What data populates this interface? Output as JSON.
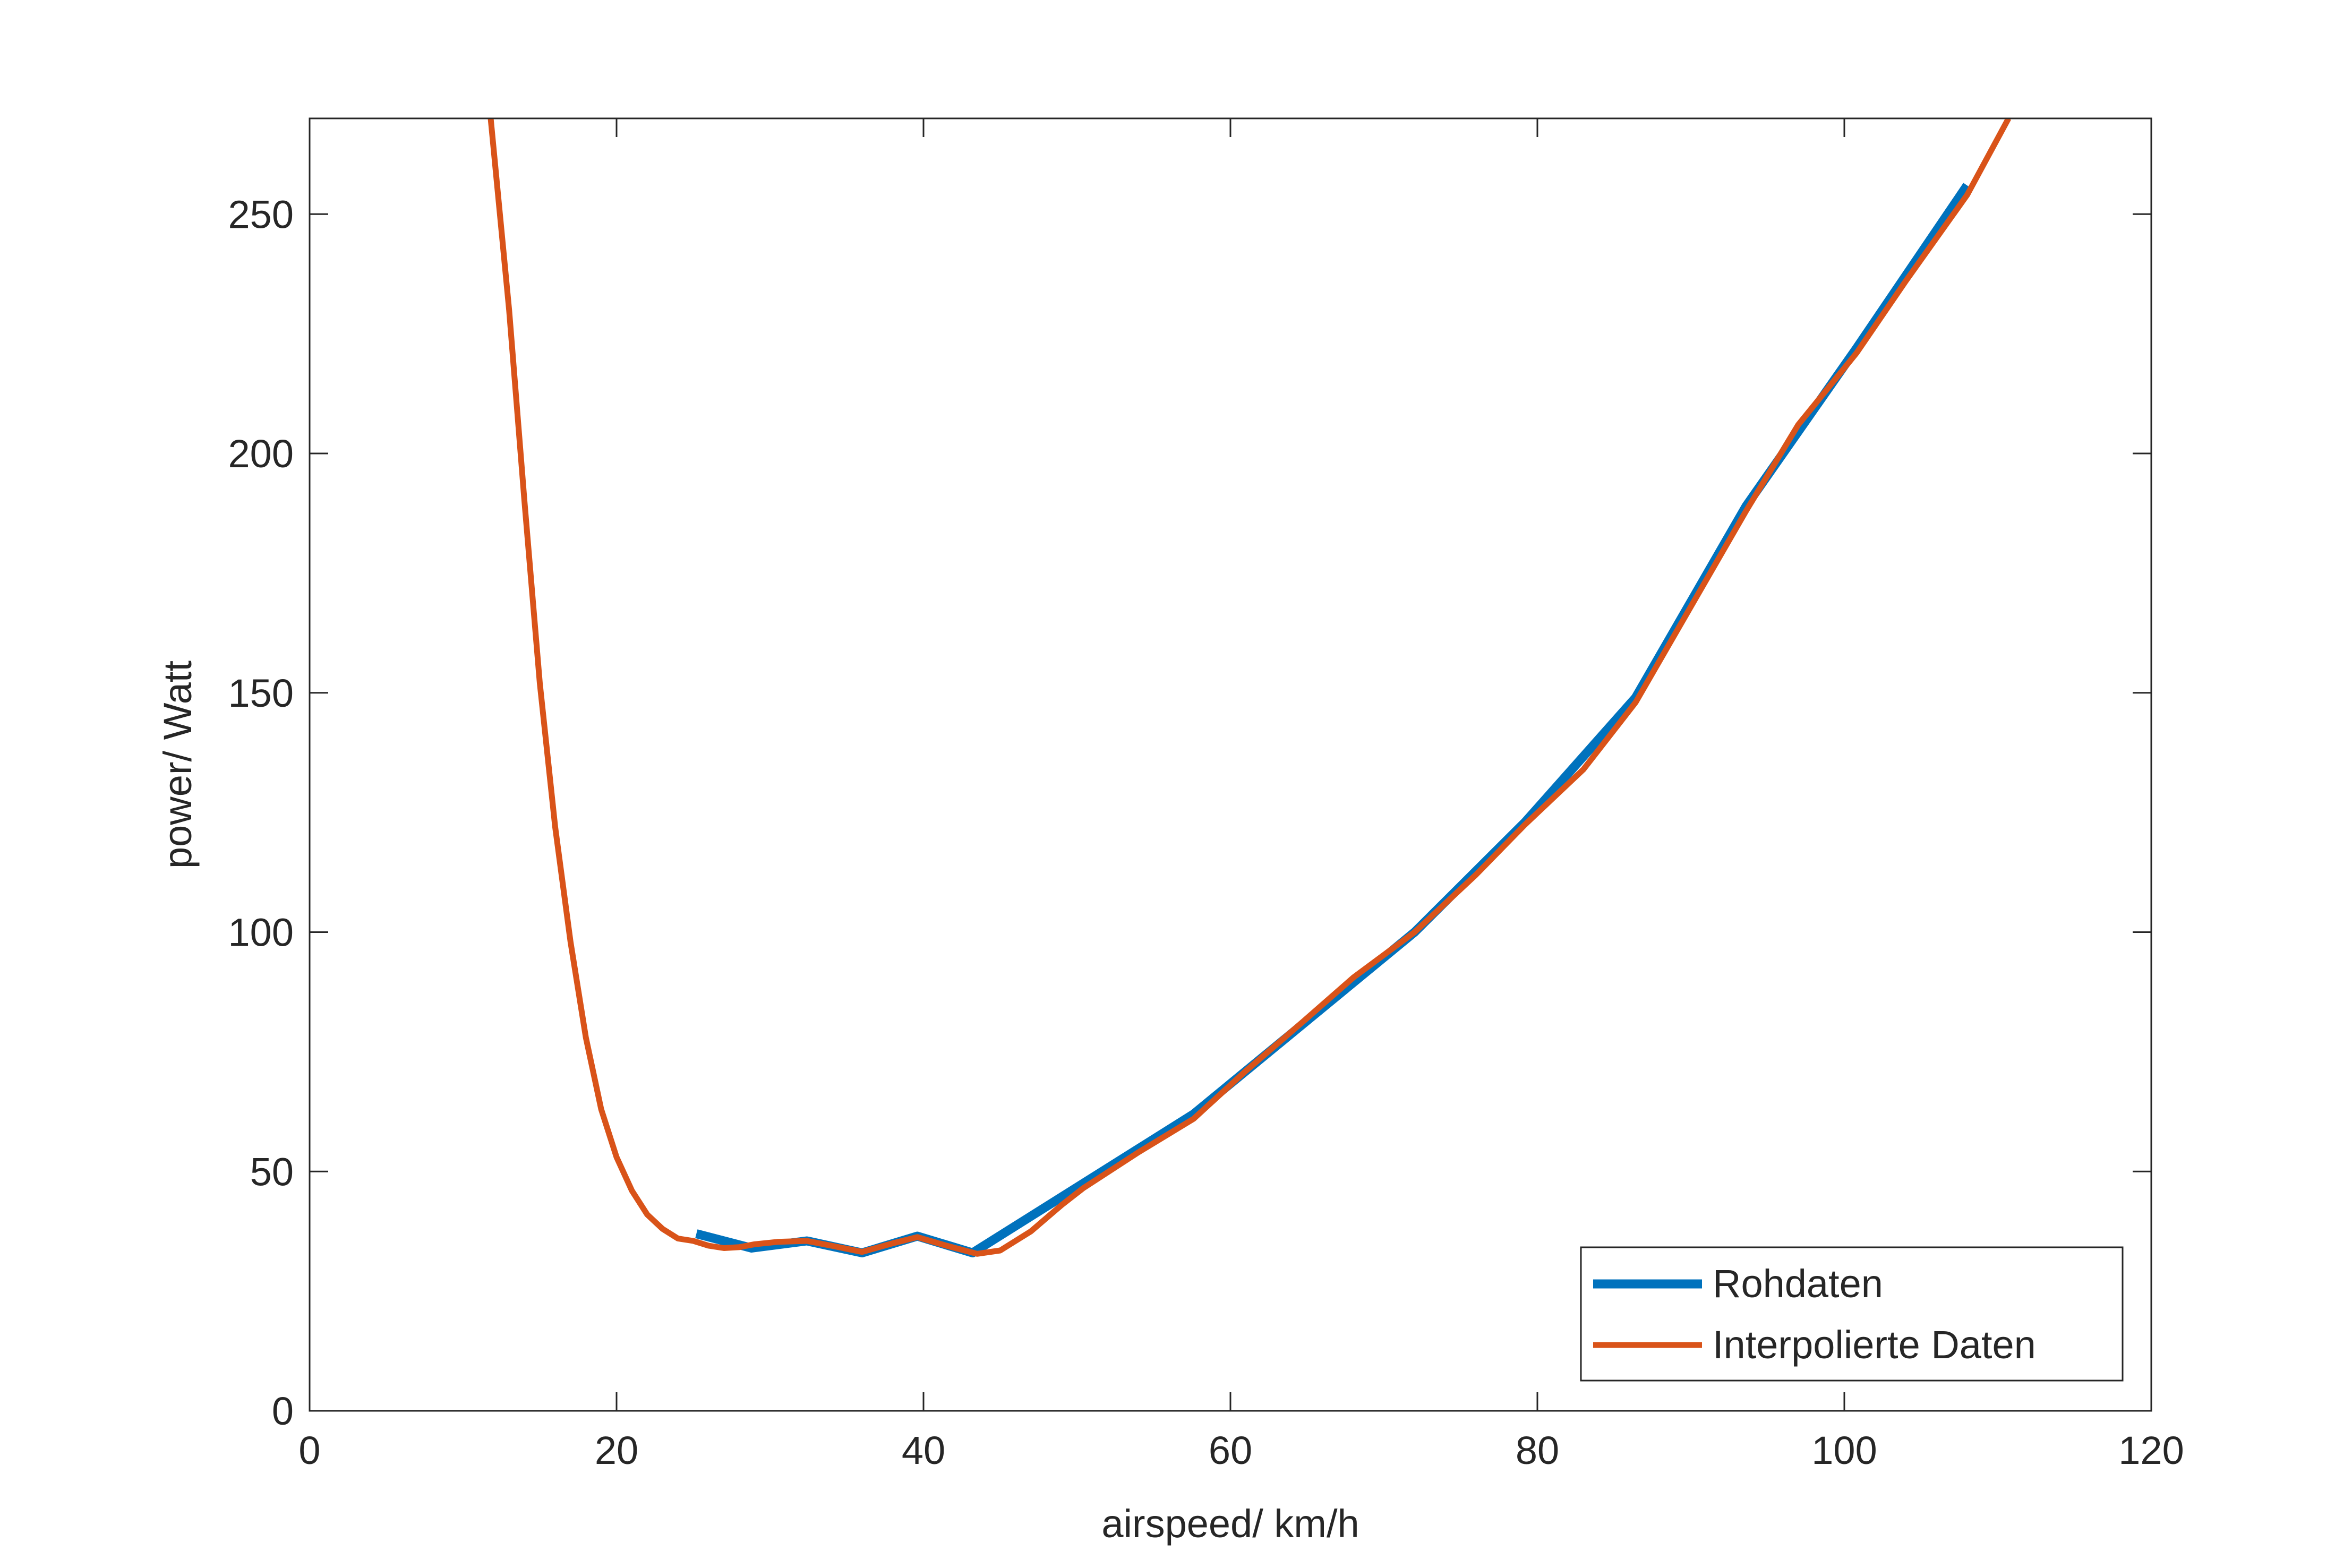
{
  "chart_data": {
    "type": "line",
    "title": "",
    "xlabel": "airspeed/ km/h",
    "ylabel": "power/ Watt",
    "xlim": [
      0,
      120
    ],
    "ylim": [
      0,
      270
    ],
    "xticks": [
      0,
      20,
      40,
      60,
      80,
      100,
      120
    ],
    "yticks": [
      0,
      50,
      100,
      150,
      200,
      250
    ],
    "grid": false,
    "legend_position": "bottom-right",
    "series": [
      {
        "name": "Rohdaten",
        "color": "#0072BD",
        "x": [
          25.2,
          28.8,
          32.4,
          36.0,
          39.6,
          43.2,
          57.6,
          64.8,
          72.0,
          79.2,
          86.4,
          93.6,
          100.8,
          108.0
        ],
        "y": [
          37,
          34,
          35.5,
          33,
          36.5,
          33,
          62,
          81,
          100,
          123,
          149,
          189,
          222,
          256
        ]
      },
      {
        "name": "Interpolierte Daten",
        "color": "#D95319",
        "x": [
          11.8,
          13,
          14,
          15,
          16,
          17,
          18,
          19,
          20,
          21,
          22,
          23,
          24,
          25,
          26,
          27,
          28,
          29,
          30.5,
          32.4,
          34,
          36,
          38,
          39.6,
          41.5,
          43.5,
          45,
          47,
          49,
          50.4,
          54,
          57.6,
          61,
          64.8,
          68,
          72,
          76,
          79.2,
          83,
          86.4,
          90,
          93.6,
          97,
          100.8,
          104,
          108,
          110.7
        ],
        "y": [
          270,
          230,
          190,
          152,
          122,
          98,
          78,
          63,
          53,
          46,
          41,
          38,
          36,
          35.5,
          34.5,
          34,
          34.2,
          34.8,
          35.3,
          35.5,
          34.5,
          33.2,
          35,
          36.3,
          34.5,
          32.8,
          33.5,
          37.5,
          43,
          46.5,
          54,
          61,
          71,
          81.5,
          90.5,
          100,
          112,
          122.5,
          134,
          148,
          168,
          188,
          206,
          221,
          236,
          254,
          270
        ]
      }
    ]
  }
}
